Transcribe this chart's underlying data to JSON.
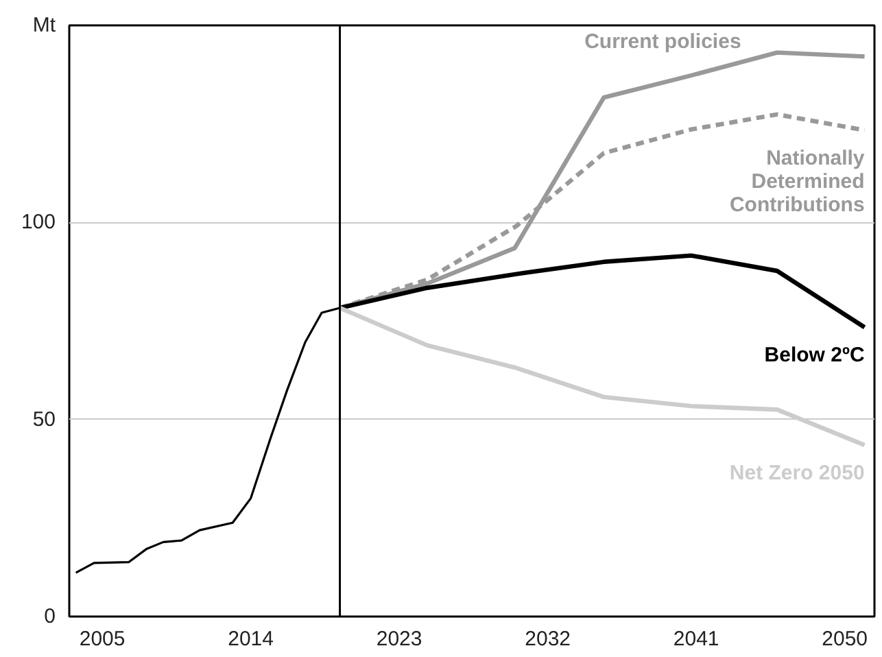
{
  "chart_data": {
    "type": "line",
    "xlim": [
      2003,
      2051.8
    ],
    "ylim": [
      0,
      150
    ],
    "xticks": [
      2005,
      2014,
      2023,
      2032,
      2041,
      2050
    ],
    "yticks": [
      0,
      50,
      100,
      {
        "value": 150,
        "label": "Mt"
      }
    ],
    "grid": "y",
    "ref_lines": [
      {
        "axis": "x",
        "value": 2019.4,
        "color": "#000000"
      }
    ],
    "series": [
      {
        "color": "#000000",
        "x": [
          2003.4,
          2004.5,
          2006.6,
          2007.7,
          2008.7,
          2009.8,
          2010.9,
          2012.9,
          2014.0,
          2015.2,
          2016.2,
          2017.3,
          2018.3,
          2019.4
        ],
        "values": [
          11.1,
          13.6,
          13.8,
          17.2,
          18.9,
          19.3,
          21.9,
          23.8,
          30.0,
          45.3,
          57.4,
          69.6,
          77.1,
          78.3
        ]
      },
      {
        "name": "Current policies",
        "color": "#999999",
        "x": [
          2019.4,
          2024.7,
          2030.0,
          2035.4,
          2040.7,
          2045.9,
          2051.2
        ],
        "values": [
          78.3,
          84.5,
          93.5,
          131.7,
          137.3,
          143.1,
          142.1
        ]
      },
      {
        "name": "Nationally Determined Contributions",
        "color": "#999999",
        "line_style": "dashed",
        "x": [
          2019.4,
          2024.7,
          2030.1,
          2035.4,
          2040.7,
          2045.9,
          2051.2
        ],
        "values": [
          78.3,
          85.5,
          99.1,
          117.6,
          123.6,
          127.4,
          123.4
        ]
      },
      {
        "name": "Below 2ºC",
        "color": "#000000",
        "x": [
          2019.4,
          2024.7,
          2030.1,
          2035.4,
          2040.7,
          2045.9,
          2051.2
        ],
        "values": [
          78.3,
          83.4,
          86.9,
          90.0,
          91.6,
          87.7,
          73.4
        ]
      },
      {
        "name": "Net Zero 2050",
        "color": "#cccccc",
        "x": [
          2019.4,
          2024.7,
          2030.0,
          2035.4,
          2040.7,
          2045.9,
          2051.2
        ],
        "values": [
          78.3,
          68.8,
          63.2,
          55.7,
          53.4,
          52.5,
          43.5
        ]
      }
    ]
  }
}
